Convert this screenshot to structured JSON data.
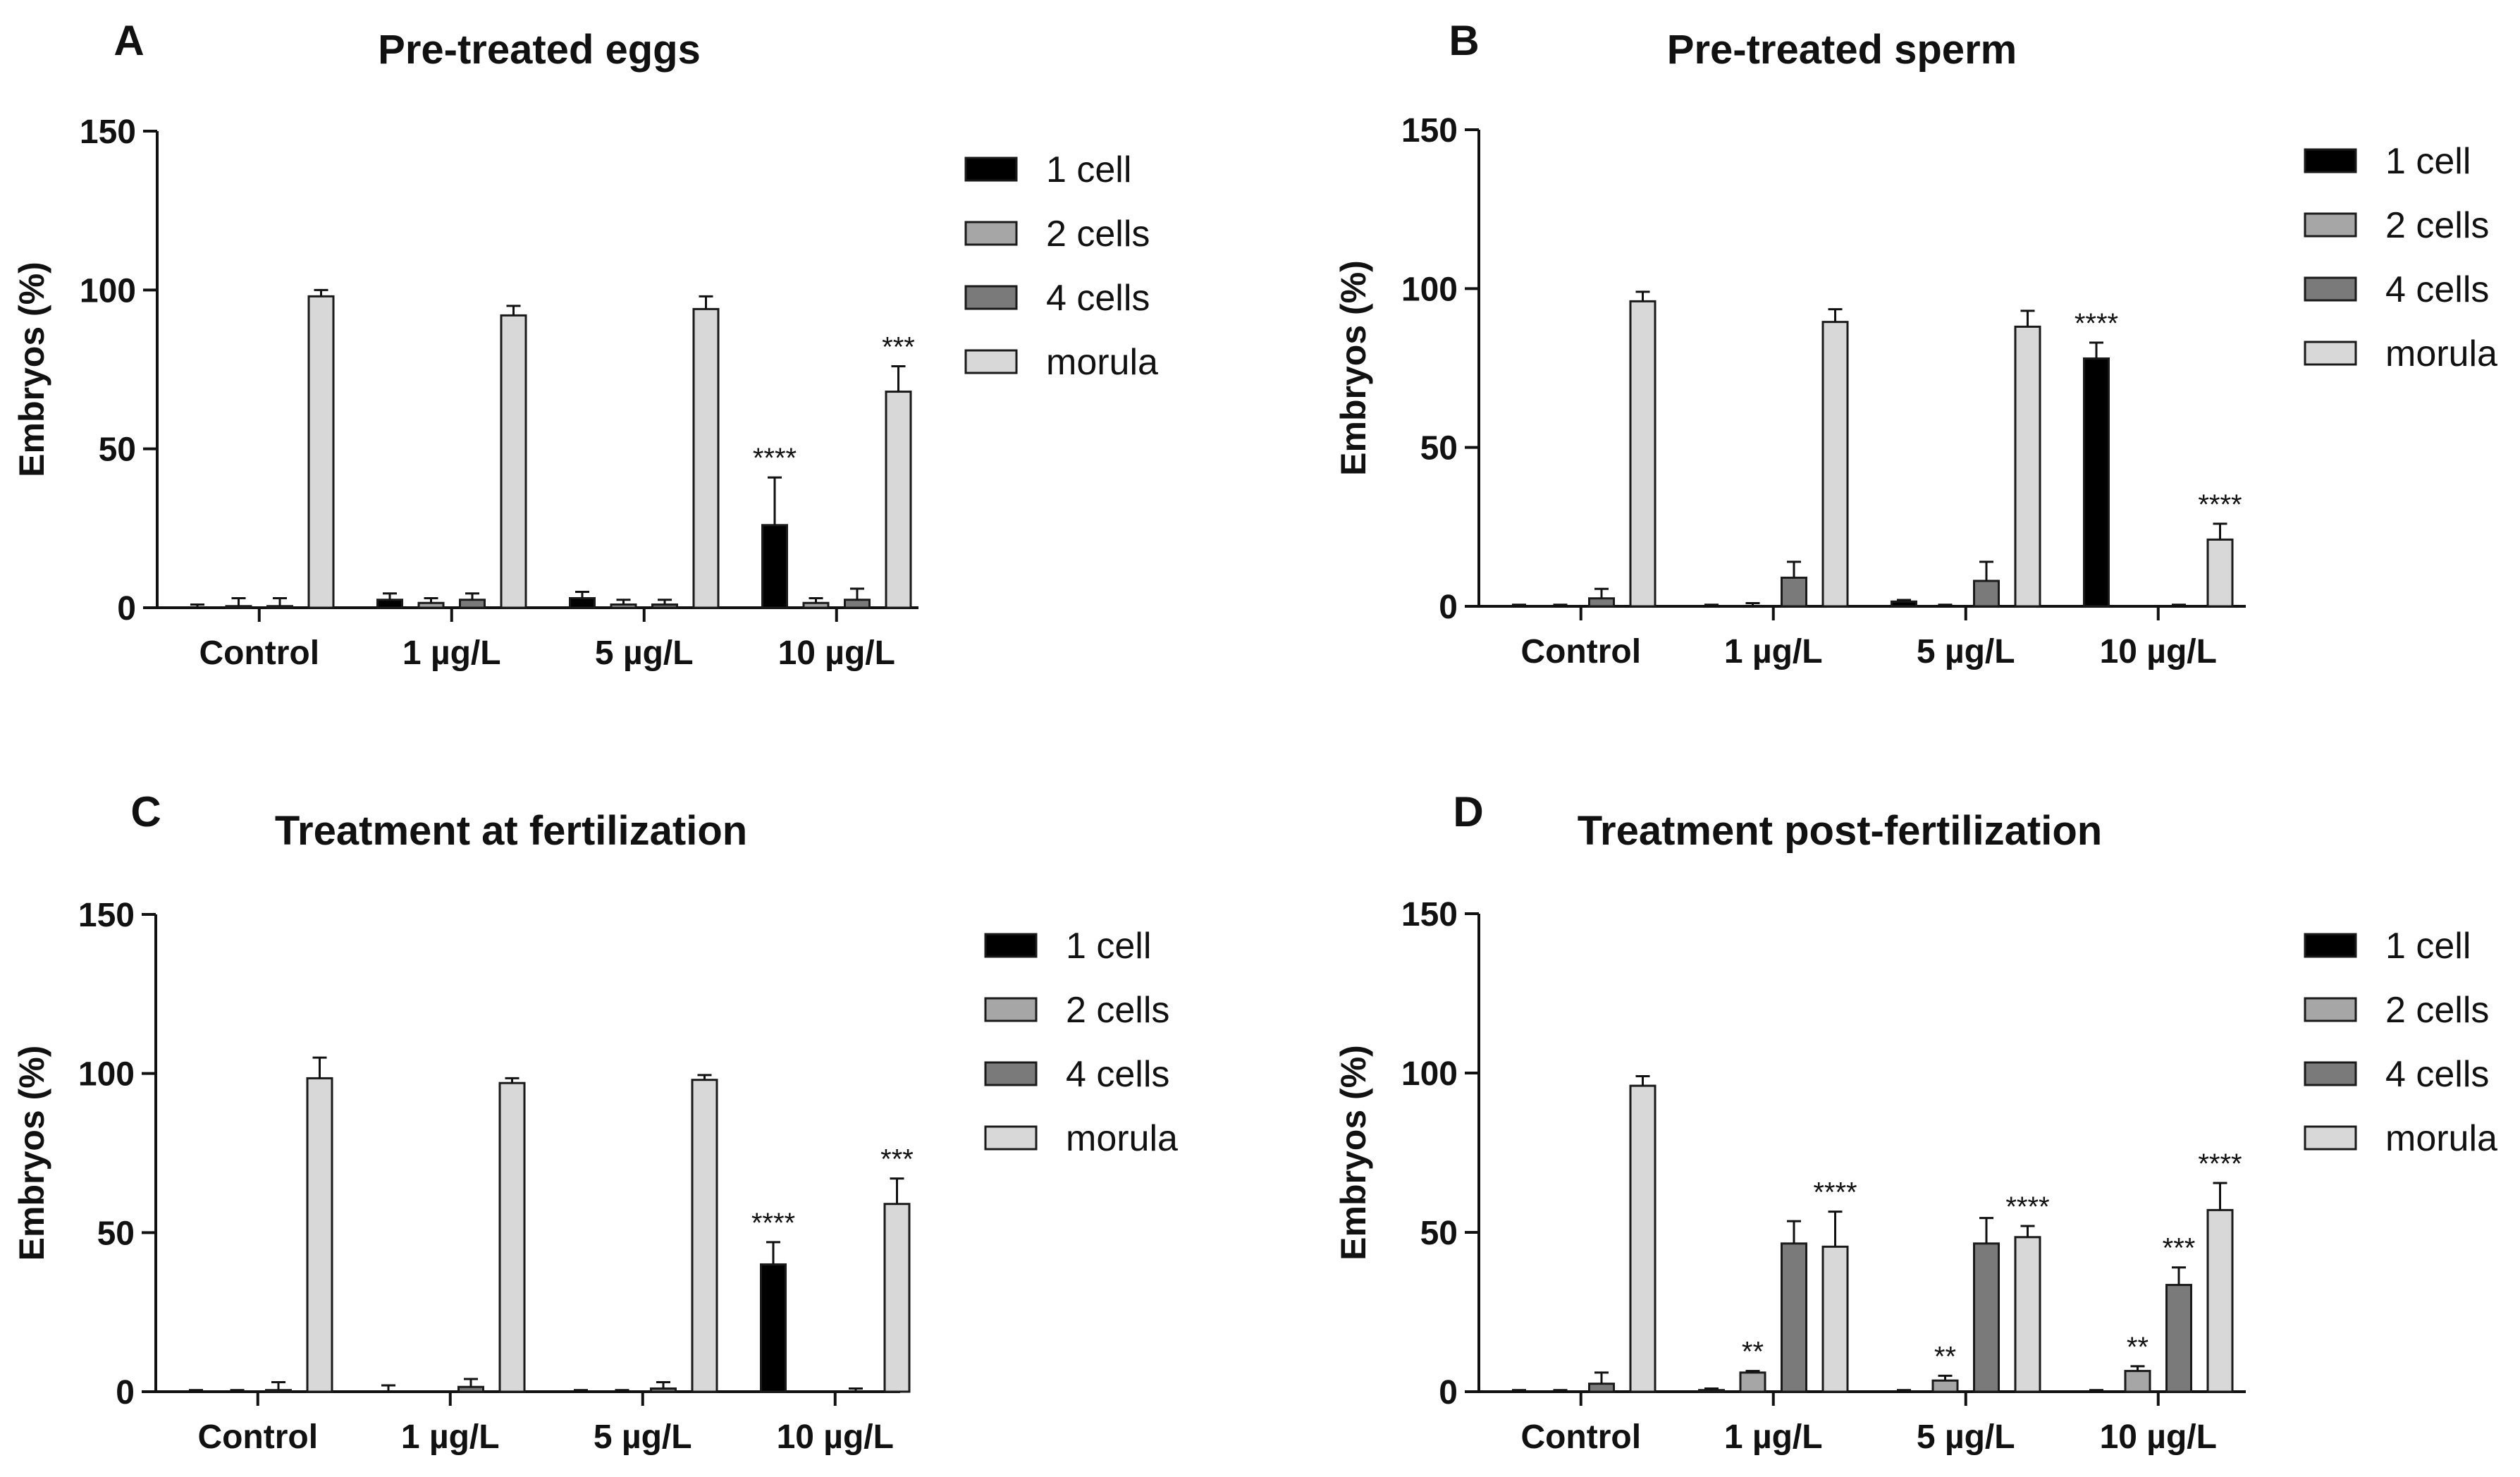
{
  "figure": {
    "colors": {
      "1 cell": "#000000",
      "2 cells": "#a6a6a6",
      "4 cells": "#7a7a7a",
      "morula": "#d8d8d8",
      "stroke": "#1a1a1a"
    }
  },
  "chart_data": [
    {
      "type": "bar",
      "panel_letter": "A",
      "title": "Pre-treated eggs",
      "xlabel": "",
      "ylabel": "Embryos (%)",
      "ylim": [
        0,
        150
      ],
      "yticks": [
        "0",
        "50",
        "100",
        "150"
      ],
      "categories": [
        "Control",
        "1 µg/L",
        "5 µg/L",
        "10 µg/L"
      ],
      "legend_labels": [
        "1 cell",
        "2 cells",
        "4 cells",
        "morula"
      ],
      "series": [
        {
          "name": "1 cell",
          "values": [
            0,
            2.5,
            3,
            26
          ],
          "errors": [
            1,
            2,
            2,
            15
          ],
          "significance": [
            "",
            "",
            "",
            "****"
          ]
        },
        {
          "name": "2 cells",
          "values": [
            0.5,
            1.5,
            1,
            1.5
          ],
          "errors": [
            2.5,
            1.5,
            1.5,
            1.5
          ],
          "significance": [
            "",
            "",
            "",
            ""
          ]
        },
        {
          "name": "4 cells",
          "values": [
            0.5,
            2.5,
            1,
            2.5
          ],
          "errors": [
            2.5,
            2,
            1.5,
            3.5
          ],
          "significance": [
            "",
            "",
            "",
            ""
          ]
        },
        {
          "name": "morula",
          "values": [
            98,
            92,
            94,
            68
          ],
          "errors": [
            2,
            3,
            4,
            8
          ],
          "significance": [
            "",
            "",
            "",
            "***"
          ]
        }
      ]
    },
    {
      "type": "bar",
      "panel_letter": "B",
      "title": "Pre-treated sperm",
      "xlabel": "",
      "ylabel": "Embryos (%)",
      "ylim": [
        0,
        150
      ],
      "yticks": [
        "0",
        "50",
        "100",
        "150"
      ],
      "categories": [
        "Control",
        "1 µg/L",
        "5 µg/L",
        "10 µg/L"
      ],
      "legend_labels": [
        "1 cell",
        "2 cells",
        "4 cells",
        "morula"
      ],
      "series": [
        {
          "name": "1 cell",
          "values": [
            0,
            0,
            1.5,
            78
          ],
          "errors": [
            0.5,
            0.5,
            0.5,
            5
          ],
          "significance": [
            "",
            "",
            "",
            "****"
          ]
        },
        {
          "name": "2 cells",
          "values": [
            0,
            0,
            0,
            0
          ],
          "errors": [
            0.5,
            1,
            0.5,
            0
          ],
          "significance": [
            "",
            "",
            "",
            ""
          ]
        },
        {
          "name": "4 cells",
          "values": [
            2.5,
            9,
            8,
            0
          ],
          "errors": [
            3,
            5,
            6,
            0.5
          ],
          "significance": [
            "",
            "",
            "",
            ""
          ]
        },
        {
          "name": "morula",
          "values": [
            96,
            89.5,
            88,
            21
          ],
          "errors": [
            3,
            4,
            5,
            5
          ],
          "significance": [
            "",
            "",
            "",
            "****"
          ]
        }
      ]
    },
    {
      "type": "bar",
      "panel_letter": "C",
      "title": "Treatment at fertilization",
      "xlabel": "",
      "ylabel": "Embryos (%)",
      "ylim": [
        0,
        150
      ],
      "yticks": [
        "0",
        "50",
        "100",
        "150"
      ],
      "categories": [
        "Control",
        "1 µg/L",
        "5 µg/L",
        "10 µg/L"
      ],
      "legend_labels": [
        "1 cell",
        "2 cells",
        "4 cells",
        "morula"
      ],
      "series": [
        {
          "name": "1 cell",
          "values": [
            0,
            0,
            0,
            40
          ],
          "errors": [
            0.5,
            2,
            0.5,
            7
          ],
          "significance": [
            "",
            "",
            "",
            "****"
          ]
        },
        {
          "name": "2 cells",
          "values": [
            0,
            0,
            0,
            0
          ],
          "errors": [
            0.5,
            0,
            0.5,
            0
          ],
          "significance": [
            "",
            "",
            "",
            ""
          ]
        },
        {
          "name": "4 cells",
          "values": [
            0.5,
            1.5,
            1,
            0
          ],
          "errors": [
            2.5,
            2.5,
            2,
            1
          ],
          "significance": [
            "",
            "",
            "",
            ""
          ]
        },
        {
          "name": "morula",
          "values": [
            98.5,
            97,
            98,
            59
          ],
          "errors": [
            6.5,
            1.5,
            1.5,
            8
          ],
          "significance": [
            "",
            "",
            "",
            "***"
          ]
        }
      ]
    },
    {
      "type": "bar",
      "panel_letter": "D",
      "title": "Treatment post-fertilization",
      "xlabel": "",
      "ylabel": "Embryos (%)",
      "ylim": [
        0,
        150
      ],
      "yticks": [
        "0",
        "50",
        "100",
        "150"
      ],
      "categories": [
        "Control",
        "1 µg/L",
        "5 µg/L",
        "10 µg/L"
      ],
      "legend_labels": [
        "1 cell",
        "2 cells",
        "4 cells",
        "morula"
      ],
      "series": [
        {
          "name": "1 cell",
          "values": [
            0,
            0.5,
            0,
            0
          ],
          "errors": [
            0.5,
            0.5,
            0.5,
            0.5
          ],
          "significance": [
            "",
            "",
            "",
            ""
          ]
        },
        {
          "name": "2 cells",
          "values": [
            0,
            6,
            3.5,
            6.5
          ],
          "errors": [
            0.5,
            0.5,
            1.5,
            1.5
          ],
          "significance": [
            "",
            "**",
            "**",
            "**"
          ]
        },
        {
          "name": "4 cells",
          "values": [
            2.5,
            46.5,
            46.5,
            33.5
          ],
          "errors": [
            3.5,
            7,
            8,
            5.5
          ],
          "significance": [
            "",
            "",
            "",
            "***"
          ]
        },
        {
          "name": "morula",
          "values": [
            96,
            45.5,
            48.5,
            57
          ],
          "errors": [
            3,
            11,
            3.5,
            8.5
          ],
          "significance": [
            "",
            "****",
            "****",
            "****"
          ]
        }
      ]
    }
  ]
}
